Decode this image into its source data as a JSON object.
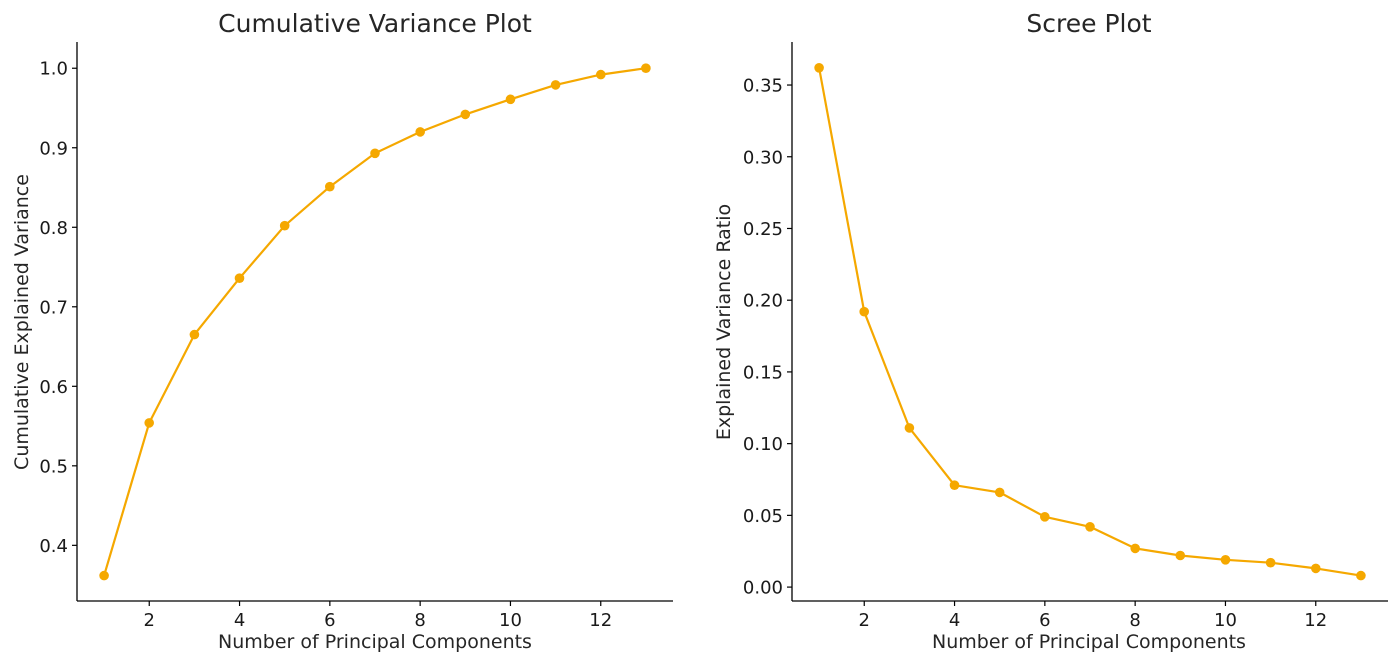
{
  "accent_color": "#f5a800",
  "chart_data": [
    {
      "type": "line",
      "title": "Cumulative Variance Plot",
      "xlabel": "Number of Principal Components",
      "ylabel": "Cumulative Explained Variance",
      "x": [
        1,
        2,
        3,
        4,
        5,
        6,
        7,
        8,
        9,
        10,
        11,
        12,
        13
      ],
      "values": [
        0.362,
        0.554,
        0.665,
        0.736,
        0.802,
        0.851,
        0.893,
        0.92,
        0.942,
        0.961,
        0.979,
        0.992,
        1.0
      ],
      "xlim": [
        0.4,
        13.6
      ],
      "ylim": [
        0.33,
        1.033
      ],
      "xticks": [
        2,
        4,
        6,
        8,
        10,
        12
      ],
      "xtick_labels": [
        "2",
        "4",
        "6",
        "8",
        "10",
        "12"
      ],
      "yticks": [
        0.4,
        0.5,
        0.6,
        0.7,
        0.8,
        0.9,
        1.0
      ],
      "ytick_labels": [
        "0.4",
        "0.5",
        "0.6",
        "0.7",
        "0.8",
        "0.9",
        "1.0"
      ],
      "grid": false,
      "marker": "circle"
    },
    {
      "type": "line",
      "title": "Scree Plot",
      "xlabel": "Number of Principal Components",
      "ylabel": "Explained Variance Ratio",
      "x": [
        1,
        2,
        3,
        4,
        5,
        6,
        7,
        8,
        9,
        10,
        11,
        12,
        13
      ],
      "values": [
        0.362,
        0.192,
        0.111,
        0.071,
        0.066,
        0.049,
        0.042,
        0.027,
        0.022,
        0.019,
        0.017,
        0.013,
        0.008
      ],
      "xlim": [
        0.4,
        13.6
      ],
      "ylim": [
        -0.0097,
        0.38
      ],
      "xticks": [
        2,
        4,
        6,
        8,
        10,
        12
      ],
      "xtick_labels": [
        "2",
        "4",
        "6",
        "8",
        "10",
        "12"
      ],
      "yticks": [
        0.0,
        0.05,
        0.1,
        0.15,
        0.2,
        0.25,
        0.3,
        0.35
      ],
      "ytick_labels": [
        "0.00",
        "0.05",
        "0.10",
        "0.15",
        "0.20",
        "0.25",
        "0.30",
        "0.35"
      ],
      "grid": false,
      "marker": "circle"
    }
  ]
}
